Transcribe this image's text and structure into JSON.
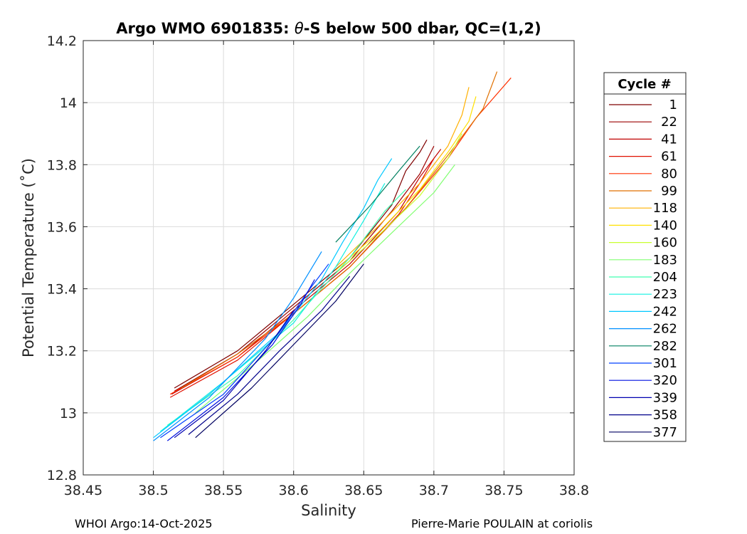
{
  "chart_data": {
    "type": "line",
    "title_prefix": "Argo WMO 6901835: ",
    "title_symbol": "θ",
    "title_suffix": "-S below 500 dbar,  QC=(1,2)",
    "xlabel": "Salinity",
    "ylabel": "Potential Temperature (˚C)",
    "xlim": [
      38.45,
      38.8
    ],
    "ylim": [
      12.8,
      14.2
    ],
    "xticks": [
      "38.45",
      "38.5",
      "38.55",
      "38.6",
      "38.65",
      "38.7",
      "38.75",
      "38.8"
    ],
    "yticks": [
      "12.8",
      "13",
      "13.2",
      "13.4",
      "13.6",
      "13.8",
      "14",
      "14.2"
    ],
    "grid": true,
    "legend": {
      "title": "Cycle #",
      "placement": "outside-right",
      "entries": [
        {
          "label": "1",
          "color": "#7f0000"
        },
        {
          "label": "22",
          "color": "#9c0000"
        },
        {
          "label": "41",
          "color": "#c00000"
        },
        {
          "label": "61",
          "color": "#e01000"
        },
        {
          "label": "80",
          "color": "#ff3000"
        },
        {
          "label": "99",
          "color": "#e07000"
        },
        {
          "label": "118",
          "color": "#ffb000"
        },
        {
          "label": "140",
          "color": "#ffe000"
        },
        {
          "label": "160",
          "color": "#c8ff30"
        },
        {
          "label": "183",
          "color": "#80ff70"
        },
        {
          "label": "204",
          "color": "#40ffb0"
        },
        {
          "label": "223",
          "color": "#10f0e0"
        },
        {
          "label": "242",
          "color": "#00c8ff"
        },
        {
          "label": "262",
          "color": "#0090ff"
        },
        {
          "label": "282",
          "color": "#008060"
        },
        {
          "label": "301",
          "color": "#0040ff"
        },
        {
          "label": "320",
          "color": "#0010e0"
        },
        {
          "label": "339",
          "color": "#0000b0"
        },
        {
          "label": "358",
          "color": "#00008a"
        },
        {
          "label": "377",
          "color": "#000060"
        }
      ]
    },
    "series": [
      {
        "name": "1",
        "color": "#7f0000",
        "S": [
          38.515,
          38.56,
          38.6,
          38.64,
          38.67,
          38.68,
          38.69,
          38.695
        ],
        "T": [
          13.08,
          13.2,
          13.35,
          13.5,
          13.67,
          13.78,
          13.84,
          13.88
        ]
      },
      {
        "name": "22",
        "color": "#9c0000",
        "S": [
          38.515,
          38.56,
          38.6,
          38.64,
          38.67,
          38.69,
          38.7
        ],
        "T": [
          13.07,
          13.19,
          13.34,
          13.49,
          13.65,
          13.77,
          13.86
        ]
      },
      {
        "name": "41",
        "color": "#c00000",
        "S": [
          38.513,
          38.56,
          38.6,
          38.64,
          38.675,
          38.69,
          38.705
        ],
        "T": [
          13.06,
          13.18,
          13.33,
          13.48,
          13.65,
          13.76,
          13.85
        ]
      },
      {
        "name": "61",
        "color": "#e01000",
        "S": [
          38.512,
          38.56,
          38.6,
          38.64,
          38.675,
          38.69,
          38.7
        ],
        "T": [
          13.05,
          13.17,
          13.32,
          13.47,
          13.64,
          13.74,
          13.82
        ]
      },
      {
        "name": "80",
        "color": "#ff3000",
        "S": [
          38.512,
          38.56,
          38.6,
          38.64,
          38.68,
          38.71,
          38.73,
          38.755
        ],
        "T": [
          13.06,
          13.18,
          13.32,
          13.47,
          13.66,
          13.82,
          13.95,
          14.08
        ]
      },
      {
        "name": "99",
        "color": "#e07000",
        "S": [
          38.52,
          38.56,
          38.6,
          38.64,
          38.68,
          38.71,
          38.735,
          38.745
        ],
        "T": [
          13.08,
          13.19,
          13.32,
          13.47,
          13.66,
          13.83,
          13.98,
          14.1
        ]
      },
      {
        "name": "118",
        "color": "#ffb000",
        "S": [
          38.63,
          38.66,
          38.69,
          38.71,
          38.72,
          38.725
        ],
        "T": [
          13.47,
          13.6,
          13.74,
          13.86,
          13.96,
          14.05
        ]
      },
      {
        "name": "140",
        "color": "#ffe000",
        "S": [
          38.63,
          38.66,
          38.69,
          38.71,
          38.725,
          38.73
        ],
        "T": [
          13.46,
          13.58,
          13.72,
          13.84,
          13.94,
          14.02
        ]
      },
      {
        "name": "160",
        "color": "#c8ff30",
        "S": [
          38.63,
          38.66,
          38.69,
          38.71,
          38.72
        ],
        "T": [
          13.45,
          13.57,
          13.7,
          13.82,
          13.9
        ]
      },
      {
        "name": "183",
        "color": "#80ff70",
        "S": [
          38.53,
          38.57,
          38.61,
          38.64,
          38.67,
          38.7,
          38.715
        ],
        "T": [
          13.0,
          13.15,
          13.31,
          13.45,
          13.58,
          13.71,
          13.8
        ]
      },
      {
        "name": "204",
        "color": "#40ffb0",
        "S": [
          38.51,
          38.56,
          38.6,
          38.64,
          38.665,
          38.68
        ],
        "T": [
          12.96,
          13.12,
          13.3,
          13.5,
          13.65,
          13.72
        ]
      },
      {
        "name": "223",
        "color": "#10f0e0",
        "S": [
          38.505,
          38.55,
          38.6,
          38.63,
          38.65,
          38.665
        ],
        "T": [
          12.94,
          13.1,
          13.29,
          13.47,
          13.62,
          13.74
        ]
      },
      {
        "name": "242",
        "color": "#00c8ff",
        "S": [
          38.5,
          38.54,
          38.59,
          38.62,
          38.635,
          38.65,
          38.66,
          38.67
        ],
        "T": [
          12.92,
          13.06,
          13.26,
          13.43,
          13.55,
          13.66,
          13.75,
          13.82
        ]
      },
      {
        "name": "262",
        "color": "#0090ff",
        "S": [
          38.5,
          38.54,
          38.58,
          38.6,
          38.62
        ],
        "T": [
          12.91,
          13.05,
          13.24,
          13.37,
          13.52
        ]
      },
      {
        "name": "282",
        "color": "#008060",
        "S": [
          38.63,
          38.655,
          38.675,
          38.69
        ],
        "T": [
          13.55,
          13.67,
          13.78,
          13.86
        ]
      },
      {
        "name": "301",
        "color": "#0040ff",
        "S": [
          38.505,
          38.55,
          38.59,
          38.61,
          38.625
        ],
        "T": [
          12.92,
          13.06,
          13.26,
          13.39,
          13.48
        ]
      },
      {
        "name": "320",
        "color": "#0010e0",
        "S": [
          38.51,
          38.55,
          38.585,
          38.605,
          38.615
        ],
        "T": [
          12.91,
          13.05,
          13.22,
          13.35,
          13.43
        ]
      },
      {
        "name": "339",
        "color": "#0000b0",
        "S": [
          38.515,
          38.55,
          38.58,
          38.6
        ],
        "T": [
          12.92,
          13.04,
          13.2,
          13.33
        ]
      },
      {
        "name": "358",
        "color": "#00008a",
        "S": [
          38.525,
          38.56,
          38.59,
          38.62,
          38.64
        ],
        "T": [
          12.93,
          13.06,
          13.2,
          13.33,
          13.44
        ]
      },
      {
        "name": "377",
        "color": "#000060",
        "S": [
          38.53,
          38.57,
          38.6,
          38.63,
          38.65
        ],
        "T": [
          12.92,
          13.08,
          13.22,
          13.36,
          13.48
        ]
      }
    ]
  },
  "footer": {
    "left": "WHOI Argo:14-Oct-2025",
    "right": "Pierre-Marie POULAIN at coriolis"
  }
}
